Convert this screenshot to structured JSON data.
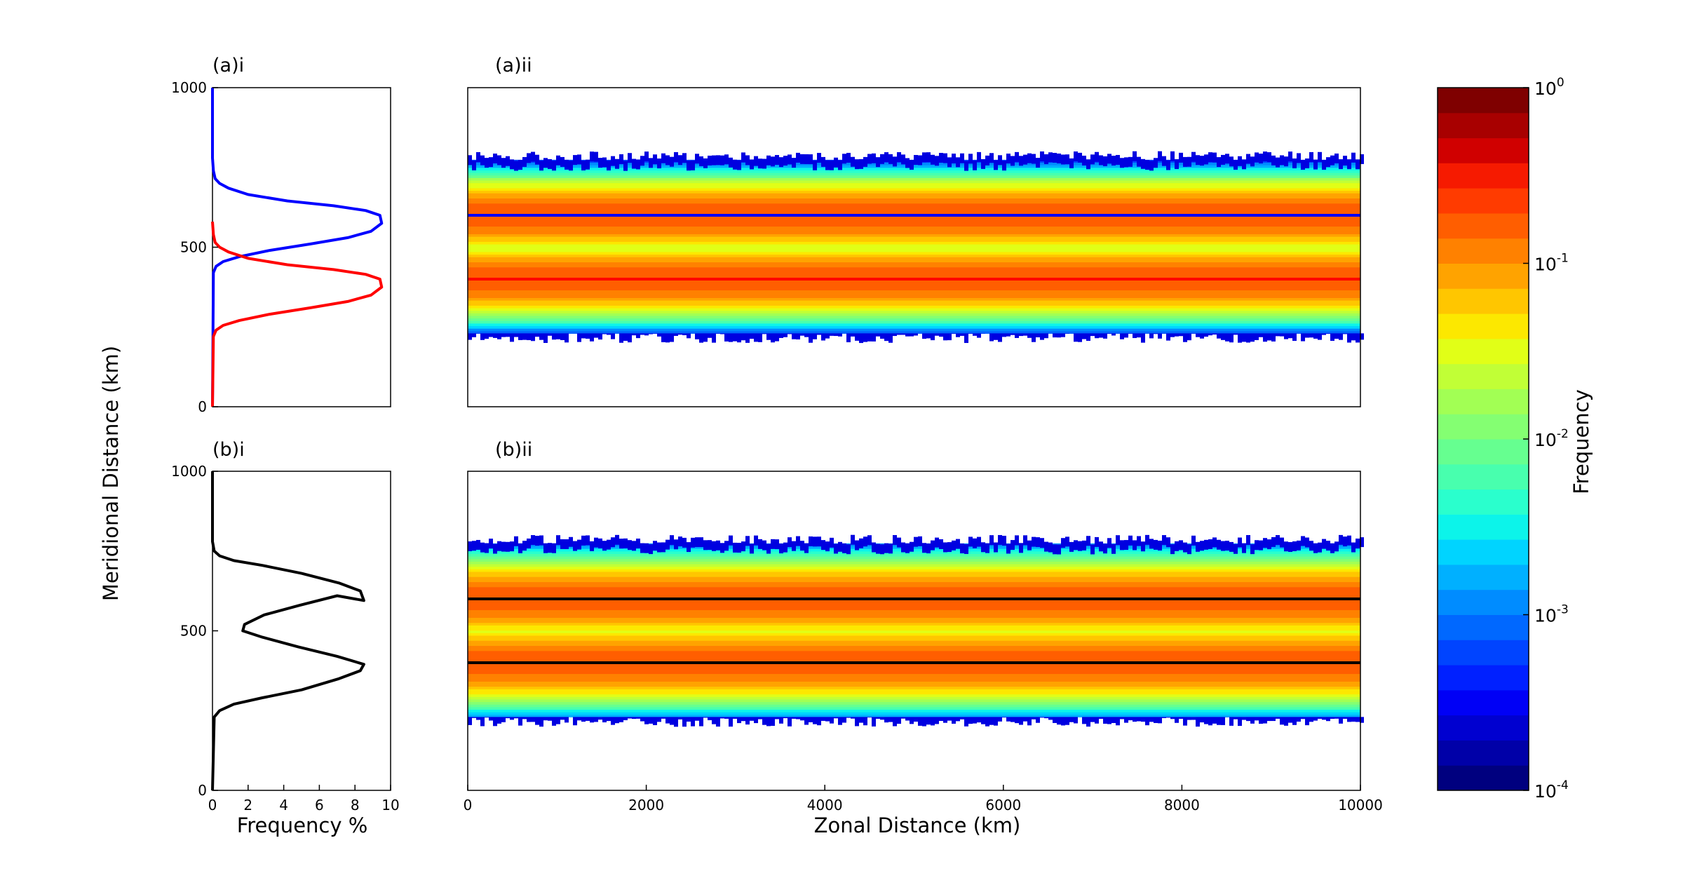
{
  "chart_data": [
    {
      "id": "ai",
      "type": "line",
      "panel_label": "(a)i",
      "xlabel": "",
      "ylabel": "Meridional Distance (km)",
      "xlim": [
        0,
        10
      ],
      "ylim": [
        0,
        1000
      ],
      "yticks": [
        "0",
        "500",
        "1000"
      ],
      "grid": false,
      "series": [
        {
          "color": "#0000ff",
          "x": [
            0,
            0.05,
            0.2,
            0.6,
            1.5,
            3.2,
            5.5,
            7.6,
            8.9,
            9.5,
            9.4,
            8.6,
            6.8,
            4.2,
            2.0,
            0.9,
            0.4,
            0.15,
            0.05,
            0,
            0
          ],
          "y": [
            0,
            420,
            440,
            455,
            470,
            490,
            510,
            530,
            550,
            575,
            600,
            615,
            630,
            645,
            665,
            685,
            700,
            715,
            740,
            780,
            1000
          ]
        },
        {
          "color": "#ff0000",
          "x": [
            0,
            0.05,
            0.2,
            0.6,
            1.5,
            3.2,
            5.5,
            7.6,
            8.9,
            9.5,
            9.4,
            8.6,
            6.8,
            4.2,
            2.0,
            0.9,
            0.4,
            0.15,
            0.05,
            0
          ],
          "y": [
            0,
            220,
            240,
            255,
            270,
            290,
            310,
            330,
            350,
            375,
            400,
            415,
            430,
            445,
            465,
            485,
            500,
            515,
            540,
            580
          ]
        }
      ]
    },
    {
      "id": "aii",
      "type": "heatmap",
      "panel_label": "(a)ii",
      "xlim": [
        0,
        10000
      ],
      "ylim": [
        0,
        1000
      ],
      "xticks": [],
      "yticks": [],
      "peak_lines": [
        {
          "y": 600,
          "color": "#0000ff"
        },
        {
          "y": 400,
          "color": "#ff0000"
        }
      ]
    },
    {
      "id": "bi",
      "type": "line",
      "panel_label": "(b)i",
      "xlabel": "Frequency %",
      "xlim": [
        0,
        10
      ],
      "ylim": [
        0,
        1000
      ],
      "xticks": [
        "0",
        "2",
        "4",
        "6",
        "8",
        "10"
      ],
      "yticks": [
        "0",
        "500",
        "1000"
      ],
      "grid": false,
      "series": [
        {
          "color": "#000000",
          "x": [
            0,
            0.1,
            0.4,
            1.2,
            2.8,
            5.0,
            7.1,
            8.3,
            8.5,
            7.0,
            4.8,
            2.8,
            1.7,
            1.8,
            2.9,
            4.9,
            7.0,
            8.5,
            8.3,
            7.1,
            5.0,
            2.8,
            1.2,
            0.4,
            0.1,
            0,
            0
          ],
          "y": [
            0,
            230,
            250,
            270,
            290,
            315,
            350,
            375,
            395,
            420,
            450,
            480,
            500,
            520,
            550,
            580,
            610,
            595,
            625,
            650,
            680,
            705,
            720,
            735,
            750,
            780,
            1000
          ]
        }
      ]
    },
    {
      "id": "bii",
      "type": "heatmap",
      "panel_label": "(b)ii",
      "xlabel": "Zonal Distance (km)",
      "xlim": [
        0,
        10000
      ],
      "ylim": [
        0,
        1000
      ],
      "xticks": [
        "0",
        "2000",
        "4000",
        "6000",
        "8000",
        "10000"
      ],
      "yticks": [],
      "peak_lines": [
        {
          "y": 600,
          "color": "#000000"
        },
        {
          "y": 400,
          "color": "#000000"
        }
      ]
    },
    {
      "id": "colorbar",
      "type": "colorbar",
      "label": "Frequency",
      "scale": "log",
      "range": [
        0.0001,
        1
      ],
      "ticks": [
        {
          "base": "10",
          "exp": "-4"
        },
        {
          "base": "10",
          "exp": "-3"
        },
        {
          "base": "10",
          "exp": "-2"
        },
        {
          "base": "10",
          "exp": "-1"
        },
        {
          "base": "10",
          "exp": "0"
        }
      ],
      "colors": [
        "#00007f",
        "#0000a8",
        "#0000d0",
        "#0000f6",
        "#0020ff",
        "#0044ff",
        "#0068ff",
        "#008cff",
        "#00b0ff",
        "#00d4ff",
        "#0cf4ea",
        "#2affcd",
        "#48ffae",
        "#66ff90",
        "#84ff72",
        "#a2ff54",
        "#c1ff36",
        "#e1ff17",
        "#fce800",
        "#ffc600",
        "#ffa300",
        "#ff8100",
        "#ff5e00",
        "#ff3b00",
        "#f61a00",
        "#d00000",
        "#a80000",
        "#7f0000"
      ]
    }
  ]
}
